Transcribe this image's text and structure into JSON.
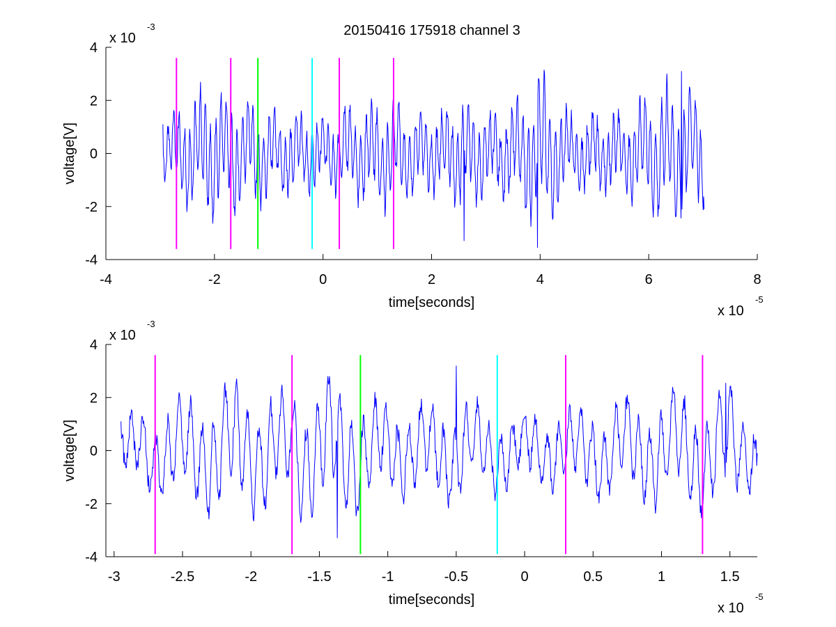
{
  "figure_title": "20150416 175918 channel 3",
  "chart_data": [
    {
      "type": "line",
      "title": "20150416 175918 channel 3",
      "xlabel": "time[seconds]",
      "ylabel": "voltage[V]",
      "x_multiplier": "x 10",
      "x_exponent": "-5",
      "y_multiplier": "x 10",
      "y_exponent": "-3",
      "xlim": [
        -4,
        8
      ],
      "ylim": [
        -4,
        4
      ],
      "xticks": [
        -4,
        -2,
        0,
        2,
        4,
        6,
        8
      ],
      "xtick_labels": [
        "-4",
        "-2",
        "0",
        "2",
        "4",
        "6",
        "8"
      ],
      "yticks": [
        -4,
        -2,
        0,
        2,
        4
      ],
      "ytick_labels": [
        "-4",
        "-2",
        "0",
        "2",
        "4"
      ],
      "grid": false,
      "signal": {
        "color": "#0000ff",
        "x_start": -2.95,
        "x_end": 7.02,
        "amplitude_envelope": [
          [
            -2.95,
            1.1
          ],
          [
            -2.7,
            1.5
          ],
          [
            -2.2,
            2.4
          ],
          [
            -1.5,
            2.0
          ],
          [
            -0.8,
            1.6
          ],
          [
            0.0,
            1.2
          ],
          [
            0.5,
            1.6
          ],
          [
            1.2,
            2.0
          ],
          [
            2.0,
            1.3
          ],
          [
            2.5,
            2.0
          ],
          [
            3.2,
            1.4
          ],
          [
            3.8,
            2.3
          ],
          [
            4.0,
            3.0
          ],
          [
            4.5,
            1.4
          ],
          [
            5.5,
            1.4
          ],
          [
            6.0,
            2.2
          ],
          [
            6.5,
            2.6
          ],
          [
            7.02,
            2.0
          ]
        ],
        "extremes": [
          {
            "x": 3.95,
            "y": -3.55
          },
          {
            "x": 6.6,
            "y": 3.1
          },
          {
            "x": 2.6,
            "y": -3.3
          }
        ],
        "end_value": -2.1
      },
      "markers": [
        {
          "x": -2.7,
          "color": "#ff00ff"
        },
        {
          "x": -1.7,
          "color": "#ff00ff"
        },
        {
          "x": -1.2,
          "color": "#00ff00"
        },
        {
          "x": -0.2,
          "color": "#00ffff"
        },
        {
          "x": 0.3,
          "color": "#ff00ff"
        },
        {
          "x": 1.3,
          "color": "#ff00ff"
        }
      ],
      "marker_span": [
        -3.6,
        3.6
      ]
    },
    {
      "type": "line",
      "title": "",
      "xlabel": "time[seconds]",
      "ylabel": "voltage[V]",
      "x_multiplier": "x 10",
      "x_exponent": "-5",
      "y_multiplier": "x 10",
      "y_exponent": "-3",
      "xlim": [
        -3.06,
        1.7
      ],
      "ylim": [
        -4,
        4
      ],
      "xticks": [
        -3,
        -2.5,
        -2,
        -1.5,
        -1,
        -0.5,
        0,
        0.5,
        1,
        1.5
      ],
      "xtick_labels": [
        "-3",
        "-2.5",
        "-2",
        "-1.5",
        "-1",
        "-0.5",
        "0",
        "0.5",
        "1",
        "1.5"
      ],
      "yticks": [
        -4,
        -2,
        0,
        2,
        4
      ],
      "ytick_labels": [
        "-4",
        "-2",
        "0",
        "2",
        "4"
      ],
      "grid": false,
      "signal": {
        "color": "#0000ff",
        "x_start": -2.95,
        "x_end": 1.7,
        "amplitude_envelope": [
          [
            -2.95,
            1.1
          ],
          [
            -2.7,
            1.6
          ],
          [
            -2.2,
            2.4
          ],
          [
            -1.8,
            2.2
          ],
          [
            -1.4,
            2.6
          ],
          [
            -1.0,
            1.6
          ],
          [
            -0.5,
            1.8
          ],
          [
            0.0,
            1.3
          ],
          [
            0.5,
            1.7
          ],
          [
            1.0,
            2.0
          ],
          [
            1.5,
            2.3
          ],
          [
            1.7,
            1.2
          ]
        ],
        "extremes": [
          {
            "x": -1.37,
            "y": -3.3
          },
          {
            "x": -0.5,
            "y": 3.2
          },
          {
            "x": 1.47,
            "y": 2.55
          }
        ],
        "end_value": -0.1
      },
      "markers": [
        {
          "x": -2.7,
          "color": "#ff00ff"
        },
        {
          "x": -1.7,
          "color": "#ff00ff"
        },
        {
          "x": -1.2,
          "color": "#00ff00"
        },
        {
          "x": -0.2,
          "color": "#00ffff"
        },
        {
          "x": 0.3,
          "color": "#ff00ff"
        },
        {
          "x": 1.3,
          "color": "#ff00ff"
        }
      ],
      "marker_span": [
        -3.9,
        3.6
      ]
    }
  ]
}
